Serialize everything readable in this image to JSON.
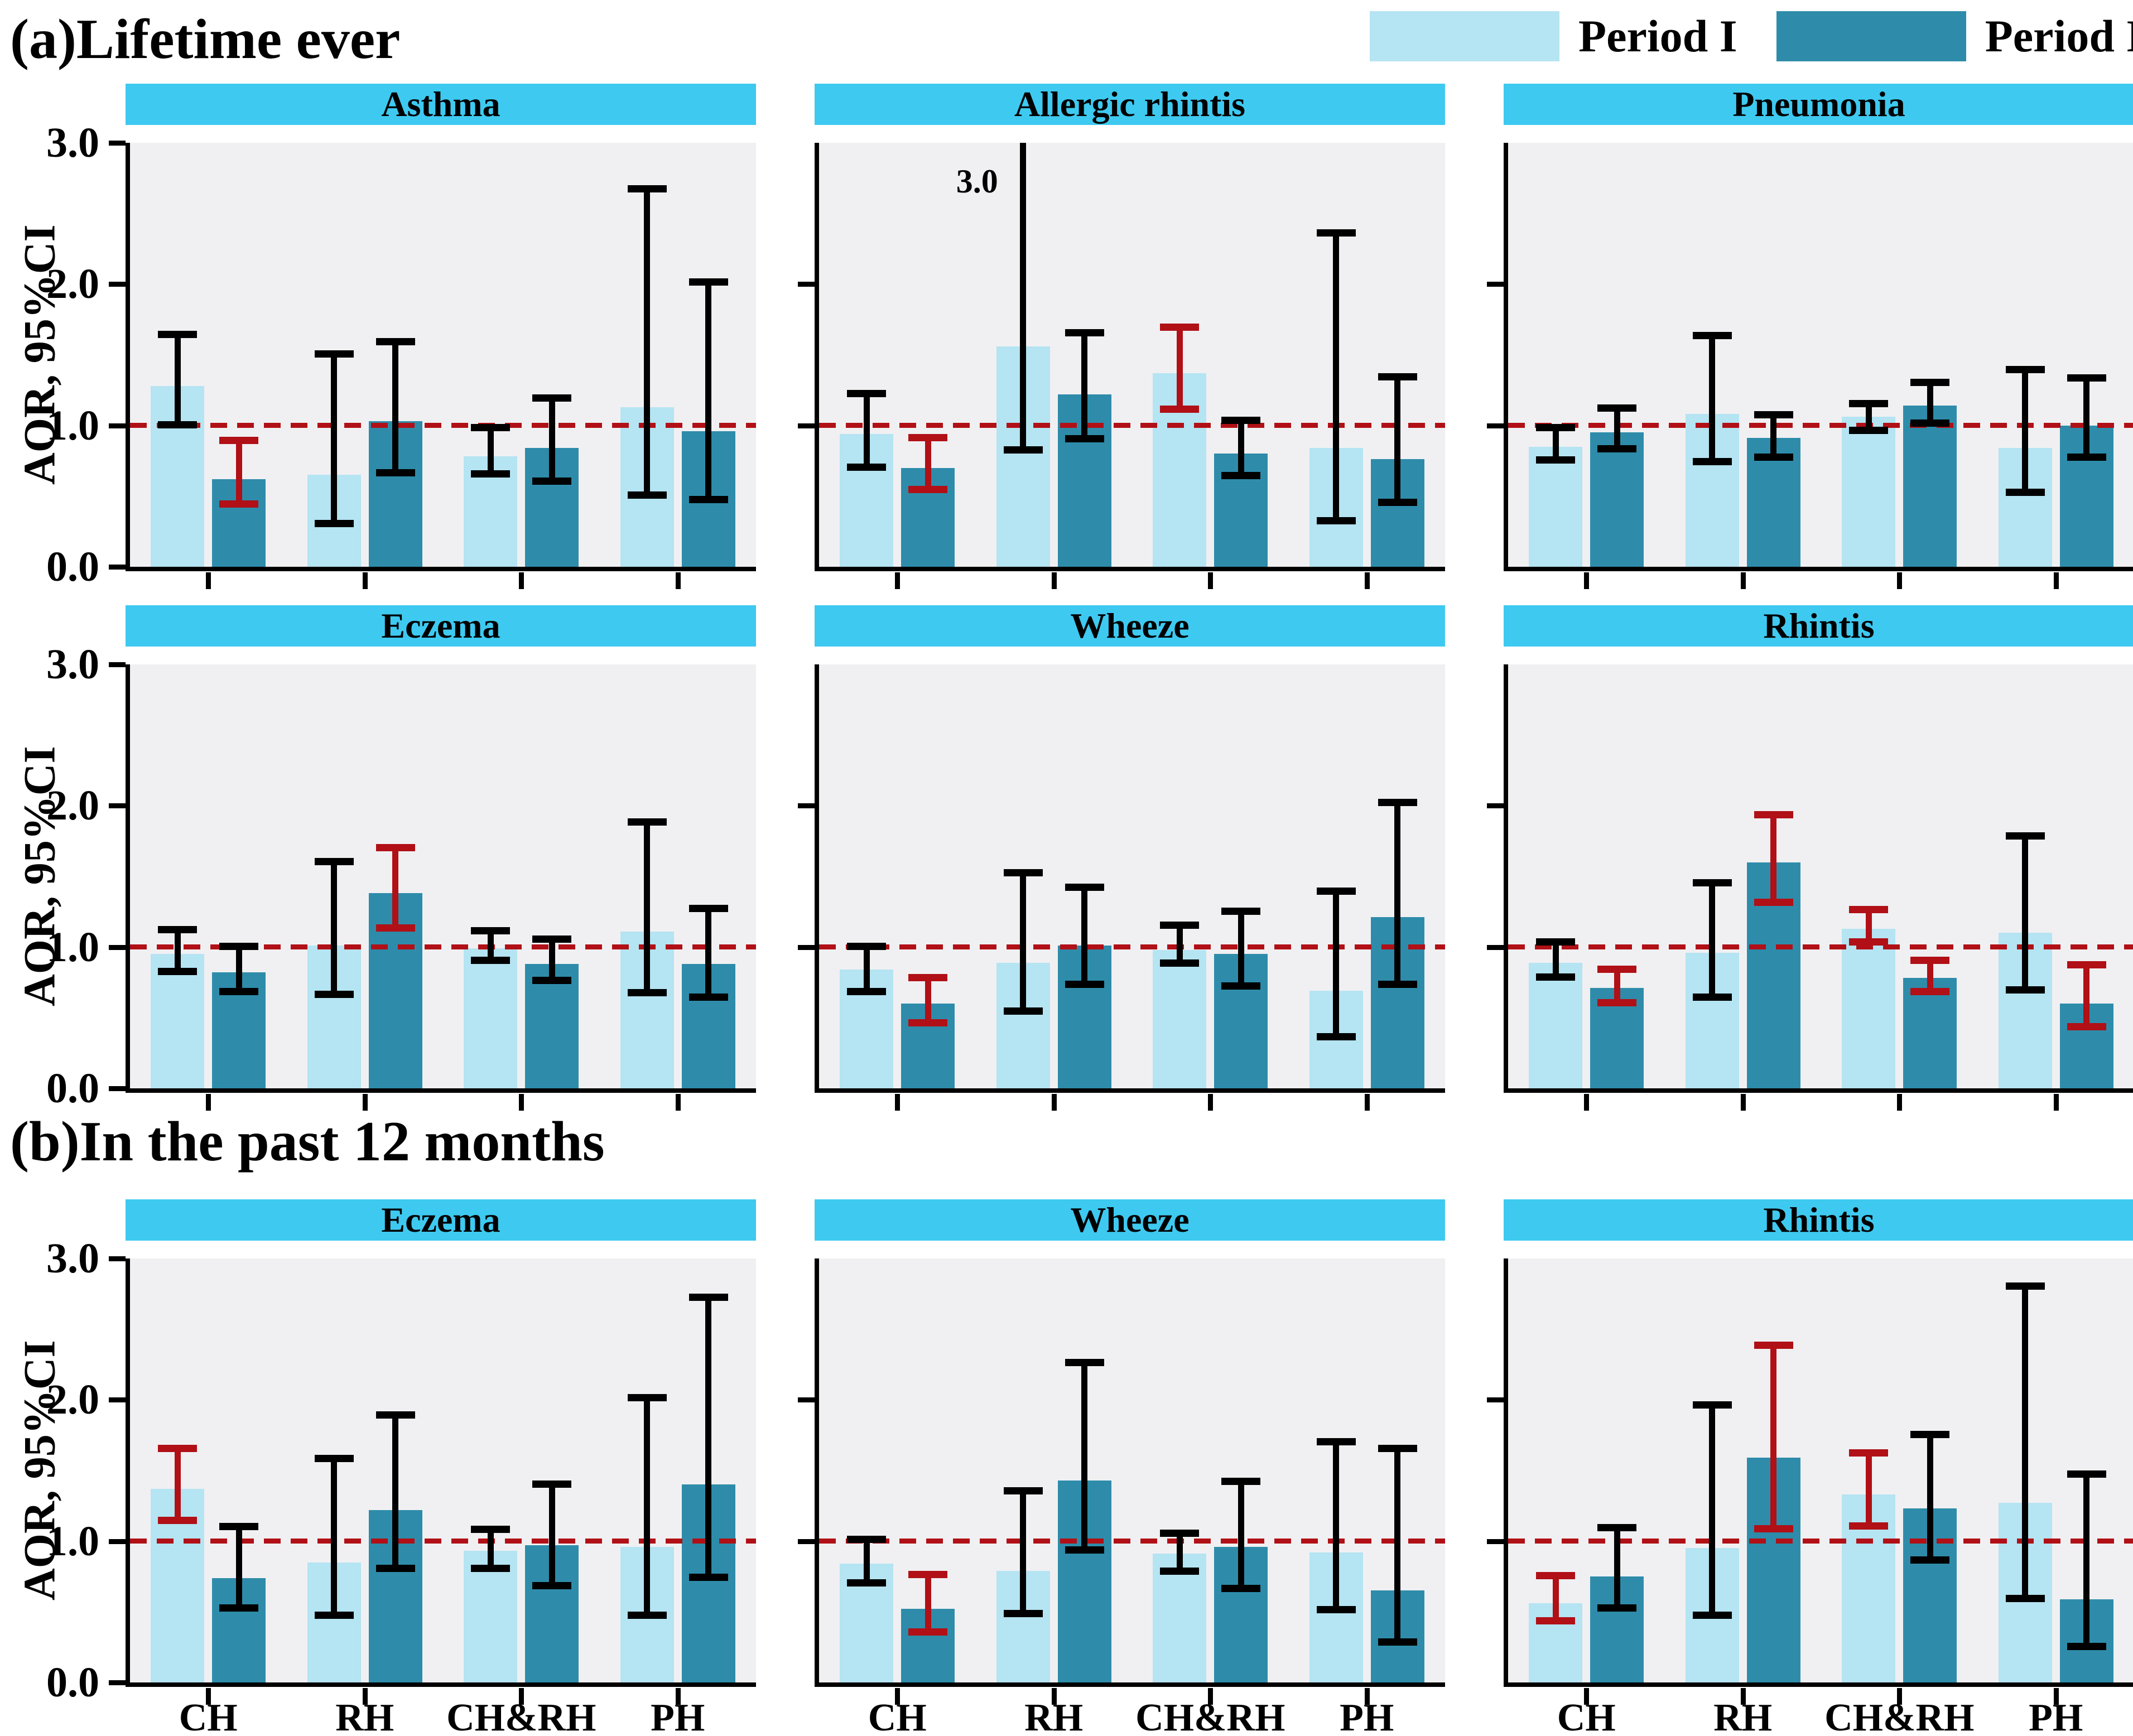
{
  "figure": {
    "section_a_title": "(a)Lifetime ever",
    "section_b_title": "(b)In the past 12 months",
    "y_axis_label": "AOR, 95%CI",
    "y_tick_labels": [
      "3.0",
      "2.0",
      "1.0",
      "0.0"
    ],
    "x_categories": [
      "CH",
      "RH",
      "CH&RH",
      "PH"
    ],
    "reference_line_value": 1.0
  },
  "legend": {
    "items": [
      {
        "label": "Period I",
        "color": "#b5e4f2"
      },
      {
        "label": "Period II",
        "color": "#2e8caa"
      }
    ]
  },
  "colors": {
    "period1_bar": "#b5e4f2",
    "period2_bar": "#2e8caa",
    "panel_header": "#3ec9f0",
    "plot_background": "#f0f0f2",
    "error_bar_black": "#000000",
    "error_bar_red": "#b01016",
    "reference_line_red": "#b01016"
  },
  "chart_data": [
    {
      "section": "(a)Lifetime ever",
      "title": "Asthma",
      "type": "bar",
      "categories": [
        "CH",
        "RH",
        "CH&RH",
        "PH"
      ],
      "ylim": [
        0,
        3
      ],
      "ref_line": 1.0,
      "series": [
        {
          "name": "Period I",
          "values": [
            1.28,
            0.65,
            0.78,
            1.13
          ],
          "ci_low": [
            0.98,
            0.28,
            0.63,
            0.48
          ],
          "ci_high": [
            1.67,
            1.53,
            1.01,
            2.7
          ],
          "significant": [
            false,
            false,
            false,
            false
          ]
        },
        {
          "name": "Period II",
          "values": [
            0.62,
            1.03,
            0.84,
            0.96
          ],
          "ci_low": [
            0.42,
            0.64,
            0.58,
            0.45
          ],
          "ci_high": [
            0.92,
            1.62,
            1.22,
            2.04
          ],
          "significant": [
            true,
            false,
            false,
            false
          ]
        }
      ]
    },
    {
      "section": "(a)Lifetime ever",
      "title": "Allergic rhintis",
      "type": "bar",
      "categories": [
        "CH",
        "RH",
        "CH&RH",
        "PH"
      ],
      "ylim": [
        0,
        3
      ],
      "ref_line": 1.0,
      "clip_label": "3.0",
      "series": [
        {
          "name": "Period I",
          "values": [
            0.94,
            1.56,
            1.37,
            0.84
          ],
          "ci_low": [
            0.68,
            0.8,
            1.09,
            0.3
          ],
          "ci_high": [
            1.25,
            3.0,
            1.72,
            2.39
          ],
          "significant": [
            false,
            false,
            true,
            false
          ],
          "clipped": [
            false,
            true,
            false,
            false
          ]
        },
        {
          "name": "Period II",
          "values": [
            0.7,
            1.22,
            0.8,
            0.76
          ],
          "ci_low": [
            0.52,
            0.88,
            0.62,
            0.43
          ],
          "ci_high": [
            0.94,
            1.68,
            1.06,
            1.37
          ],
          "significant": [
            true,
            false,
            false,
            false
          ]
        }
      ]
    },
    {
      "section": "(a)Lifetime ever",
      "title": "Pneumonia",
      "type": "bar",
      "categories": [
        "CH",
        "RH",
        "CH&RH",
        "PH"
      ],
      "ylim": [
        0,
        3
      ],
      "ref_line": 1.0,
      "series": [
        {
          "name": "Period I",
          "values": [
            0.85,
            1.08,
            1.06,
            0.84
          ],
          "ci_low": [
            0.73,
            0.72,
            0.94,
            0.5
          ],
          "ci_high": [
            1.01,
            1.66,
            1.18,
            1.42
          ],
          "significant": [
            false,
            false,
            false,
            false
          ]
        },
        {
          "name": "Period II",
          "values": [
            0.95,
            0.91,
            1.14,
            1.0
          ],
          "ci_low": [
            0.81,
            0.75,
            0.99,
            0.75
          ],
          "ci_high": [
            1.15,
            1.1,
            1.33,
            1.36
          ],
          "significant": [
            false,
            false,
            false,
            false
          ]
        }
      ]
    },
    {
      "section": "(a)Lifetime ever",
      "title": "Eczema",
      "type": "bar",
      "categories": [
        "CH",
        "RH",
        "CH&RH",
        "PH"
      ],
      "ylim": [
        0,
        3
      ],
      "ref_line": 1.0,
      "series": [
        {
          "name": "Period I",
          "values": [
            0.95,
            1.01,
            0.99,
            1.11
          ],
          "ci_low": [
            0.8,
            0.64,
            0.88,
            0.65
          ],
          "ci_high": [
            1.15,
            1.63,
            1.14,
            1.91
          ],
          "significant": [
            false,
            false,
            false,
            false
          ]
        },
        {
          "name": "Period II",
          "values": [
            0.82,
            1.38,
            0.88,
            0.88
          ],
          "ci_low": [
            0.66,
            1.11,
            0.74,
            0.62
          ],
          "ci_high": [
            1.03,
            1.73,
            1.08,
            1.3
          ],
          "significant": [
            false,
            true,
            false,
            false
          ]
        }
      ]
    },
    {
      "section": "(a)Lifetime ever",
      "title": "Wheeze",
      "type": "bar",
      "categories": [
        "CH",
        "RH",
        "CH&RH",
        "PH"
      ],
      "ylim": [
        0,
        3
      ],
      "ref_line": 1.0,
      "series": [
        {
          "name": "Period I",
          "values": [
            0.84,
            0.89,
            0.98,
            0.69
          ],
          "ci_low": [
            0.66,
            0.52,
            0.86,
            0.34
          ],
          "ci_high": [
            1.03,
            1.55,
            1.18,
            1.42
          ],
          "significant": [
            false,
            false,
            false,
            false
          ]
        },
        {
          "name": "Period II",
          "values": [
            0.6,
            1.01,
            0.95,
            1.21
          ],
          "ci_low": [
            0.44,
            0.71,
            0.7,
            0.71
          ],
          "ci_high": [
            0.81,
            1.45,
            1.28,
            2.05
          ],
          "significant": [
            true,
            false,
            false,
            false
          ]
        }
      ]
    },
    {
      "section": "(a)Lifetime ever",
      "title": "Rhintis",
      "type": "bar",
      "categories": [
        "CH",
        "RH",
        "CH&RH",
        "PH"
      ],
      "ylim": [
        0,
        3
      ],
      "ref_line": 1.0,
      "series": [
        {
          "name": "Period I",
          "values": [
            0.89,
            0.96,
            1.13,
            1.1
          ],
          "ci_low": [
            0.76,
            0.62,
            1.01,
            0.67
          ],
          "ci_high": [
            1.06,
            1.48,
            1.29,
            1.81
          ],
          "significant": [
            false,
            false,
            true,
            false
          ]
        },
        {
          "name": "Period II",
          "values": [
            0.71,
            1.6,
            0.78,
            0.6
          ],
          "ci_low": [
            0.58,
            1.29,
            0.66,
            0.41
          ],
          "ci_high": [
            0.87,
            1.96,
            0.93,
            0.9
          ],
          "significant": [
            true,
            true,
            true,
            true
          ]
        }
      ]
    },
    {
      "section": "(b)In the past 12 months",
      "title": "Eczema",
      "type": "bar",
      "categories": [
        "CH",
        "RH",
        "CH&RH",
        "PH"
      ],
      "ylim": [
        0,
        3
      ],
      "ref_line": 1.0,
      "series": [
        {
          "name": "Period I",
          "values": [
            1.37,
            0.85,
            0.93,
            0.96
          ],
          "ci_low": [
            1.12,
            0.45,
            0.78,
            0.45
          ],
          "ci_high": [
            1.68,
            1.61,
            1.11,
            2.04
          ],
          "significant": [
            true,
            false,
            false,
            false
          ]
        },
        {
          "name": "Period II",
          "values": [
            0.74,
            1.22,
            0.97,
            1.4
          ],
          "ci_low": [
            0.5,
            0.78,
            0.66,
            0.72
          ],
          "ci_high": [
            1.13,
            1.92,
            1.43,
            2.75
          ],
          "significant": [
            false,
            false,
            false,
            false
          ]
        }
      ]
    },
    {
      "section": "(b)In the past 12 months",
      "title": "Wheeze",
      "type": "bar",
      "categories": [
        "CH",
        "RH",
        "CH&RH",
        "PH"
      ],
      "ylim": [
        0,
        3
      ],
      "ref_line": 1.0,
      "series": [
        {
          "name": "Period I",
          "values": [
            0.84,
            0.79,
            0.91,
            0.92
          ],
          "ci_low": [
            0.68,
            0.46,
            0.76,
            0.49
          ],
          "ci_high": [
            1.04,
            1.38,
            1.08,
            1.73
          ],
          "significant": [
            false,
            false,
            false,
            false
          ]
        },
        {
          "name": "Period II",
          "values": [
            0.52,
            1.43,
            0.96,
            0.65
          ],
          "ci_low": [
            0.33,
            0.91,
            0.64,
            0.26
          ],
          "ci_high": [
            0.79,
            2.29,
            1.45,
            1.68
          ],
          "significant": [
            true,
            false,
            false,
            false
          ]
        }
      ]
    },
    {
      "section": "(b)In the past 12 months",
      "title": "Rhintis",
      "type": "bar",
      "categories": [
        "CH",
        "RH",
        "CH&RH",
        "PH"
      ],
      "ylim": [
        0,
        3
      ],
      "ref_line": 1.0,
      "series": [
        {
          "name": "Period I",
          "values": [
            0.56,
            0.95,
            1.33,
            1.27
          ],
          "ci_low": [
            0.41,
            0.45,
            1.08,
            0.57
          ],
          "ci_high": [
            0.78,
            1.99,
            1.65,
            2.83
          ],
          "significant": [
            true,
            false,
            true,
            false
          ]
        },
        {
          "name": "Period II",
          "values": [
            0.75,
            1.59,
            1.23,
            0.59
          ],
          "ci_low": [
            0.5,
            1.06,
            0.84,
            0.23
          ],
          "ci_high": [
            1.12,
            2.41,
            1.78,
            1.5
          ],
          "significant": [
            false,
            true,
            false,
            false
          ]
        }
      ]
    }
  ]
}
